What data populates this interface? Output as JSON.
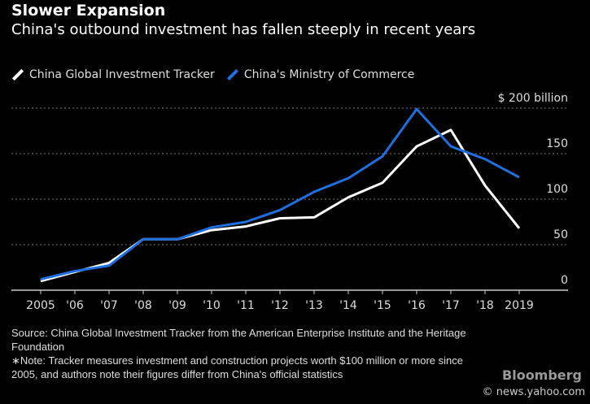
{
  "chart_data": {
    "type": "line",
    "title": "Slower Expansion",
    "subtitle": "China's outbound investment has fallen steeply in recent years",
    "categories": [
      "2005",
      "'06",
      "'07",
      "'08",
      "'09",
      "'10",
      "'11",
      "'12",
      "'13",
      "'14",
      "'15",
      "'16",
      "'17",
      "'18",
      "2019"
    ],
    "series": [
      {
        "name": "China Global Investment Tracker",
        "color": "#ffffff",
        "values": [
          10,
          20,
          30,
          56,
          56,
          66,
          70,
          79,
          80,
          102,
          118,
          158,
          176,
          115,
          68
        ]
      },
      {
        "name": "China's Ministry of Commerce",
        "color": "#1f6fe0",
        "values": [
          12,
          21,
          27,
          56,
          56,
          69,
          75,
          88,
          108,
          123,
          147,
          199,
          158,
          144,
          124
        ]
      }
    ],
    "yticks": [
      0,
      50,
      100,
      150,
      200
    ],
    "ytick_labels": [
      "0",
      "50",
      "100",
      "150",
      "$ 200  billion"
    ],
    "ylim": [
      0,
      200
    ],
    "grid": true,
    "legend": "top-left"
  },
  "source": "Source: China Global Investment Tracker from the American Enterprise Institute and the Heritage Foundation",
  "note": "∗Note: Tracker measures investment and construction projects worth $100 million or more since 2005, and authors note their figures differ from China's official statistics",
  "watermark": "© news.yahoo.com",
  "logo": "Bloomberg"
}
